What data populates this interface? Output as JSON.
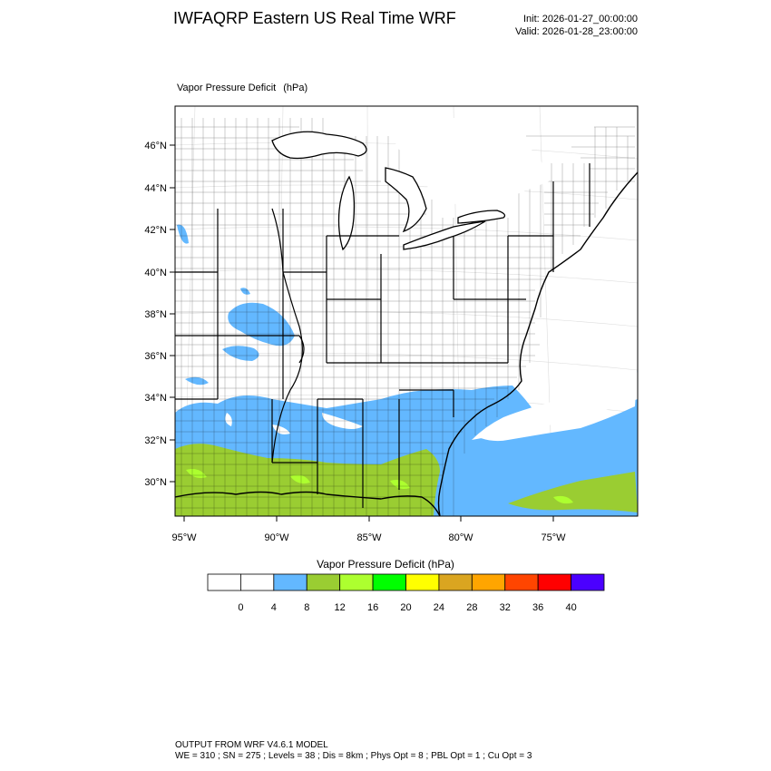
{
  "header": {
    "title": "IWFAQRP Eastern US Real Time WRF",
    "init": "Init: 2026-01-27_00:00:00",
    "valid": "Valid: 2026-01-28_23:00:00"
  },
  "map": {
    "variable": "Vapor Pressure Deficit",
    "units": "(hPa)",
    "lat_labels": [
      "46°N",
      "44°N",
      "42°N",
      "40°N",
      "38°N",
      "36°N",
      "34°N",
      "32°N",
      "30°N"
    ],
    "lon_labels": [
      "95°W",
      "90°W",
      "85°W",
      "80°W",
      "75°W"
    ]
  },
  "colorbar": {
    "title": "Vapor Pressure Deficit  (hPa)",
    "tick_labels": [
      "0",
      "4",
      "8",
      "12",
      "16",
      "20",
      "24",
      "28",
      "32",
      "36",
      "40"
    ],
    "colors": [
      "#ffffff",
      "#ffffff",
      "#63b8ff",
      "#9acd32",
      "#adff2f",
      "#00ff00",
      "#ffff00",
      "#daa520",
      "#ffa500",
      "#ff4500",
      "#ff0000",
      "#4b00ff"
    ]
  },
  "footer": {
    "line1": "OUTPUT FROM WRF V4.6.1 MODEL",
    "line2": "WE = 310 ; SN = 275 ; Levels = 38 ; Dis = 8km ; Phys Opt = 8 ; PBL Opt = 1 ; Cu Opt = 3"
  }
}
